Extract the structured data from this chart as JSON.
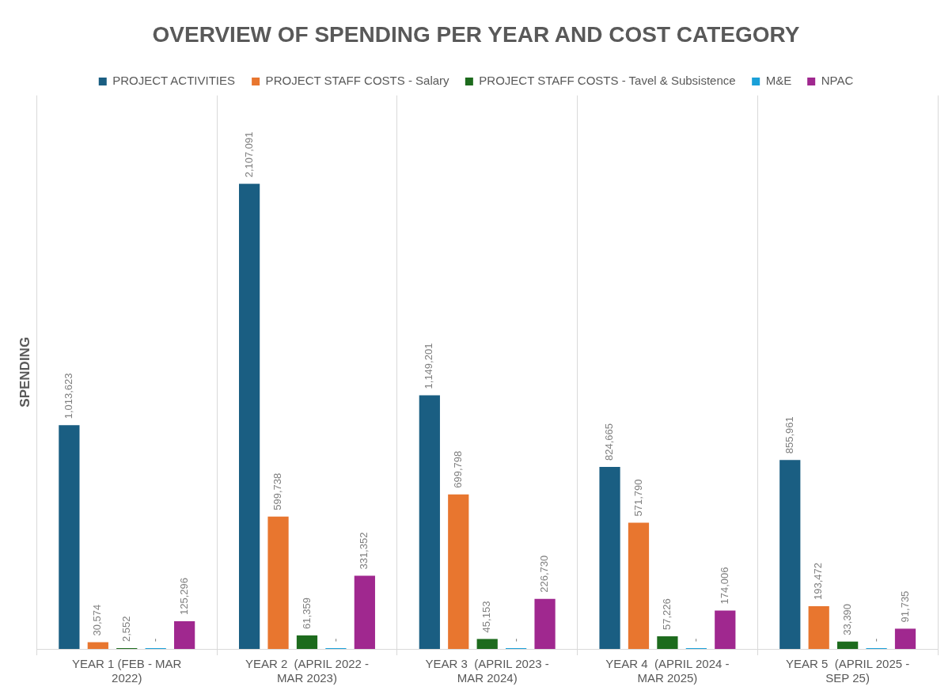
{
  "chart_data": {
    "type": "bar",
    "title": "OVERVIEW OF SPENDING PER YEAR AND COST CATEGORY",
    "ylabel": "SPENDING",
    "categories": [
      "YEAR 1 (FEB - MAR 2022)",
      "YEAR 2  (APRIL 2022 - MAR 2023)",
      "YEAR 3  (APRIL 2023 - MAR 2024)",
      "YEAR 4  (APRIL 2024 - MAR 2025)",
      "YEAR 5  (APRIL 2025 - SEP 25)"
    ],
    "series": [
      {
        "name": "PROJECT ACTIVITIES",
        "color": "#1a5e82",
        "values": [
          1013623,
          2107091,
          1149201,
          824665,
          855961
        ],
        "value_labels": [
          "1,013,623",
          "2,107,091",
          "1,149,201",
          "824,665",
          "855,961"
        ]
      },
      {
        "name": "PROJECT STAFF COSTS - Salary",
        "color": "#e8762f",
        "values": [
          30574,
          599738,
          699798,
          571790,
          193472
        ],
        "value_labels": [
          "30,574",
          "599,738",
          "699,798",
          "571,790",
          "193,472"
        ]
      },
      {
        "name": "PROJECT STAFF COSTS - Tavel & Subsistence",
        "color": "#1d6b1d",
        "values": [
          2552,
          61359,
          45153,
          57226,
          33390
        ],
        "value_labels": [
          "2,552",
          "61,359",
          "45,153",
          "57,226",
          "33,390"
        ]
      },
      {
        "name": "M&E",
        "color": "#1aa0d8",
        "values": [
          0,
          0,
          0,
          0,
          0
        ],
        "value_labels": [
          "-",
          "-",
          "-",
          "-",
          "-"
        ]
      },
      {
        "name": "NPAC",
        "color": "#a0288f",
        "values": [
          125296,
          331352,
          226730,
          174006,
          91735
        ],
        "value_labels": [
          "125,296",
          "331,352",
          "226,730",
          "174,006",
          "91,735"
        ]
      }
    ],
    "grid": "x",
    "legend": "top",
    "tick_labels": "x"
  }
}
